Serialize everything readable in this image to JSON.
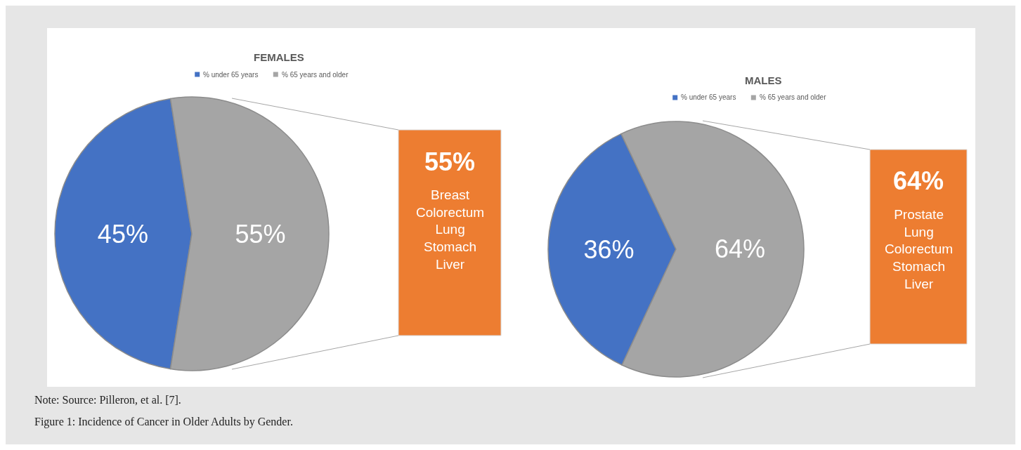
{
  "chart_data": [
    {
      "type": "pie",
      "title": "FEMALES",
      "categories": [
        "% under 65 years",
        "% 65 years and older"
      ],
      "values": [
        45,
        55
      ],
      "colors": [
        "#4472c4",
        "#a5a5a5"
      ],
      "value_labels": [
        "45%",
        "55%"
      ],
      "legend": "top",
      "annotations": [
        "55%",
        "Breast\nColorectum\nLung\nStomach\nLiver"
      ]
    },
    {
      "type": "pie",
      "title": "MALES",
      "categories": [
        "% under 65 years",
        "% 65 years and older"
      ],
      "values": [
        36,
        64
      ],
      "colors": [
        "#4472c4",
        "#a5a5a5"
      ],
      "value_labels": [
        "36%",
        "64%"
      ],
      "legend": "top",
      "annotations": [
        "64%",
        "Prostate\nLung\nColorectum\nStomach\nLiver",
        "Note: Source: Pilleron, et al. [7].",
        "Figure 1: Incidence of Cancer in Older Adults by Gender."
      ]
    }
  ]
}
